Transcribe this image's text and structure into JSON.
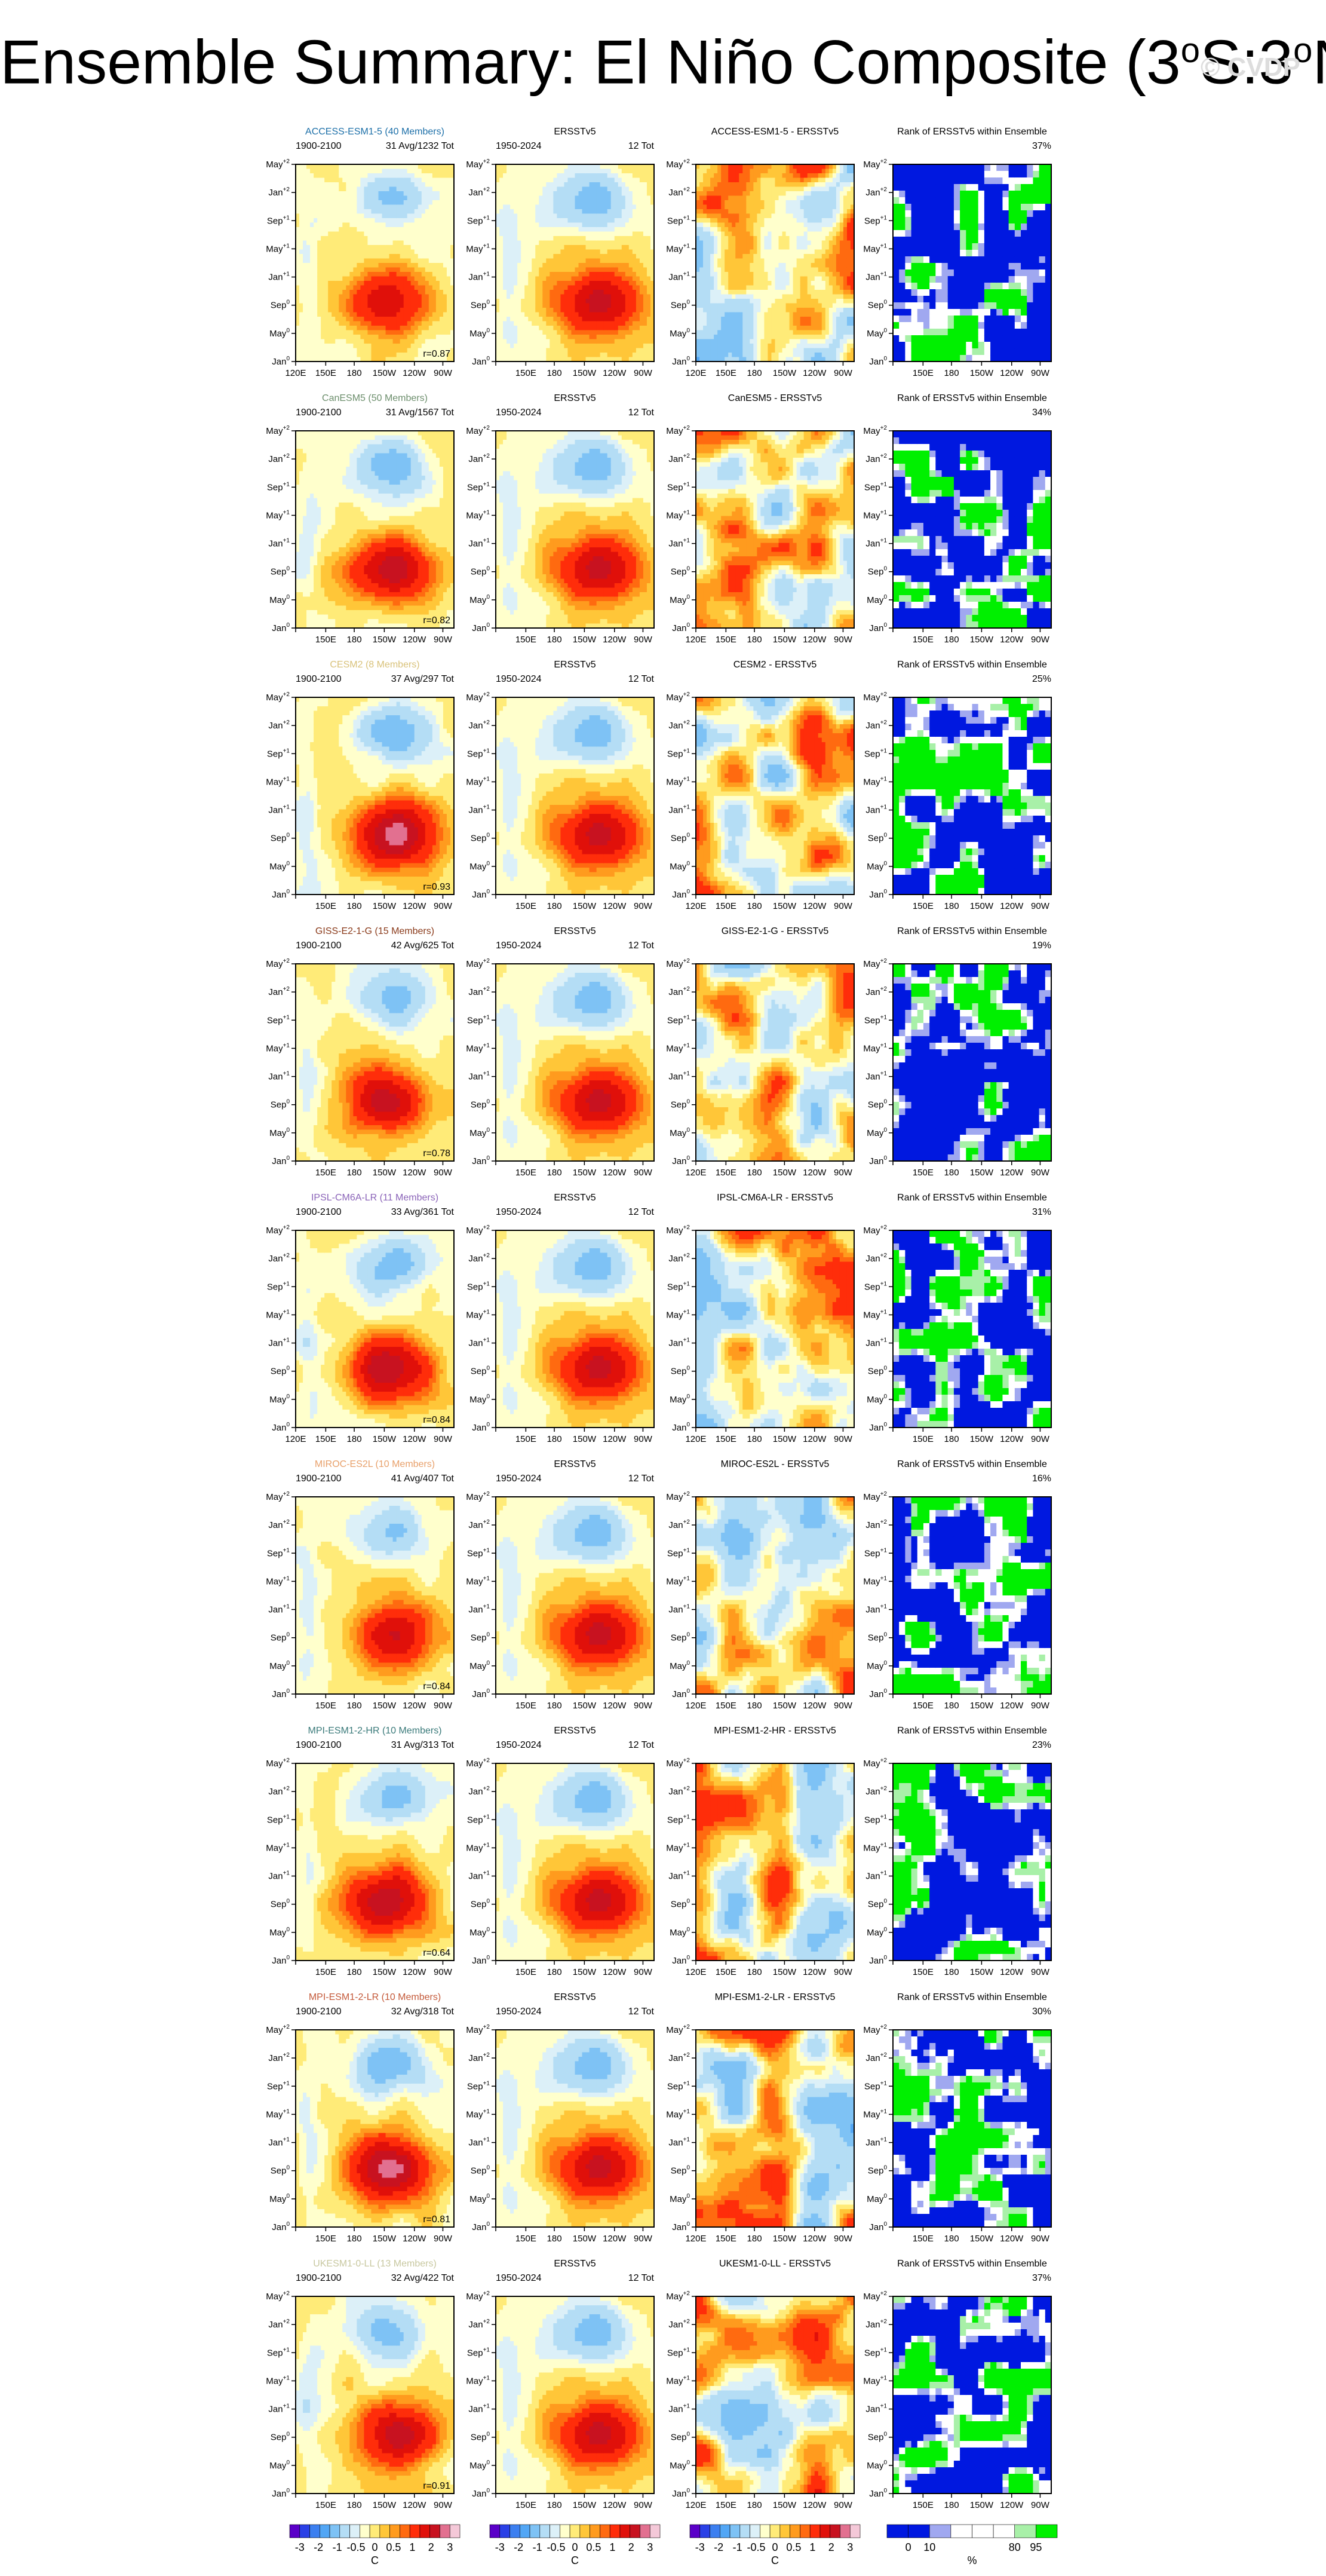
{
  "title": {
    "main": "Ensemble Summary: El Niño Composite (3",
    "sup1": "o",
    "mid": "S:3",
    "sup2": "o",
    "end": "N)"
  },
  "watermark": "© CVDP",
  "obs": {
    "period": "1950-2024",
    "count": "12 Tot",
    "name": "ERSSTv5"
  },
  "rank_title": "Rank of ERSSTv5 within Ensemble",
  "x_ticks": [
    "120E",
    "150E",
    "180",
    "150W",
    "120W",
    "90W"
  ],
  "y_ticks": [
    {
      "base": "Jan",
      "sup": "0"
    },
    {
      "base": "May",
      "sup": "0"
    },
    {
      "base": "Sep",
      "sup": "0"
    },
    {
      "base": "Jan",
      "sup": "+1"
    },
    {
      "base": "May",
      "sup": "+1"
    },
    {
      "base": "Sep",
      "sup": "+1"
    },
    {
      "base": "Jan",
      "sup": "+2"
    },
    {
      "base": "May",
      "sup": "+2"
    }
  ],
  "colors": {
    "sst_levels": [
      "#5a00c8",
      "#2a40e6",
      "#3c7ff0",
      "#52a6f5",
      "#7ec2f5",
      "#b4ddf5",
      "#dcf0f8",
      "#ffffcc",
      "#ffeb78",
      "#ffc638",
      "#ff9b1e",
      "#ff6a10",
      "#ff2d0a",
      "#e0100a",
      "#c81220",
      "#e27090",
      "#f4c8d8"
    ],
    "rank": {
      "low": "#0018e0",
      "mid_low": "#a0a8f0",
      "mid": "#ffffff",
      "high_mid": "#a8f0a8",
      "high": "#00f000"
    }
  },
  "models": [
    {
      "name": "ACCESS-ESM1-5 (40 Members)",
      "name_color": "#1c6fa8",
      "period": "1900-2100",
      "count": "31 Avg/1232 Tot",
      "r": "r=0.87",
      "diff_title": "ACCESS-ESM1-5 - ERSSTv5",
      "rank_pct": "37%"
    },
    {
      "name": "CanESM5 (50 Members)",
      "name_color": "#6d8f6d",
      "period": "1900-2100",
      "count": "31 Avg/1567 Tot",
      "r": "r=0.82",
      "diff_title": "CanESM5 - ERSSTv5",
      "rank_pct": "34%"
    },
    {
      "name": "CESM2 (8 Members)",
      "name_color": "#d9c27a",
      "period": "1900-2100",
      "count": "37 Avg/297 Tot",
      "r": "r=0.93",
      "diff_title": "CESM2 - ERSSTv5",
      "rank_pct": "25%"
    },
    {
      "name": "GISS-E2-1-G (15 Members)",
      "name_color": "#8a3a1a",
      "period": "1900-2100",
      "count": "42 Avg/625 Tot",
      "r": "r=0.78",
      "diff_title": "GISS-E2-1-G - ERSSTv5",
      "rank_pct": "19%"
    },
    {
      "name": "IPSL-CM6A-LR (11 Members)",
      "name_color": "#8a63b8",
      "period": "1900-2100",
      "count": "33 Avg/361 Tot",
      "r": "r=0.84",
      "diff_title": "IPSL-CM6A-LR - ERSSTv5",
      "rank_pct": "31%"
    },
    {
      "name": "MIROC-ES2L (10 Members)",
      "name_color": "#e8a06a",
      "period": "1900-2100",
      "count": "41 Avg/407 Tot",
      "r": "r=0.84",
      "diff_title": "MIROC-ES2L - ERSSTv5",
      "rank_pct": "16%"
    },
    {
      "name": "MPI-ESM1-2-HR (10 Members)",
      "name_color": "#3a7a7a",
      "period": "1900-2100",
      "count": "31 Avg/313 Tot",
      "r": "r=0.64",
      "diff_title": "MPI-ESM1-2-HR - ERSSTv5",
      "rank_pct": "23%"
    },
    {
      "name": "MPI-ESM1-2-LR (10 Members)",
      "name_color": "#c45a3a",
      "period": "1900-2100",
      "count": "32 Avg/318 Tot",
      "r": "r=0.81",
      "diff_title": "MPI-ESM1-2-LR - ERSSTv5",
      "rank_pct": "30%"
    },
    {
      "name": "UKESM1-0-LL (13 Members)",
      "name_color": "#c8c8a0",
      "period": "1900-2100",
      "count": "32 Avg/422 Tot",
      "r": "r=0.91",
      "diff_title": "UKESM1-0-LL - ERSSTv5",
      "rank_pct": "37%"
    }
  ],
  "colorbars": {
    "sst": {
      "labels": [
        "-3",
        "-2",
        "-1",
        "-0.5",
        "0",
        "0.5",
        "1",
        "2",
        "3"
      ],
      "unit": "C"
    },
    "rank": {
      "labels": [
        "0",
        "10",
        "80",
        "95"
      ],
      "unit": "%"
    }
  },
  "chart_data": {
    "type": "heatmap",
    "description_x": "longitude 120E-80W",
    "description_y": "composite month Jan0 to May+2",
    "xlim": [
      120,
      280
    ],
    "ylim": [
      0,
      28
    ],
    "value_range": [
      -3,
      3
    ],
    "units": "C"
  }
}
